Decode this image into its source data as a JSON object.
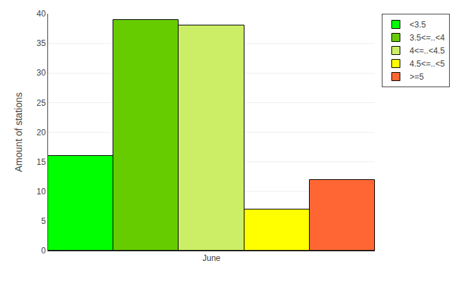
{
  "chart_data": {
    "type": "bar",
    "categories": [
      "June"
    ],
    "series": [
      {
        "name": "<3.5",
        "color": "#00FF00",
        "values": [
          16
        ]
      },
      {
        "name": "3.5<=..<4",
        "color": "#66CC00",
        "values": [
          39
        ]
      },
      {
        "name": "4<=..<4.5",
        "color": "#CCEE66",
        "values": [
          38
        ]
      },
      {
        "name": "4.5<=..<5",
        "color": "#FFFF00",
        "values": [
          7
        ]
      },
      {
        "name": ">=5",
        "color": "#FF6633",
        "values": [
          12
        ]
      }
    ],
    "ylabel": "Amount of stations",
    "ylim": [
      0,
      40
    ],
    "yticks": [
      0,
      5,
      10,
      15,
      20,
      25,
      30,
      35,
      40
    ],
    "grid": true,
    "legend": "upper right"
  }
}
